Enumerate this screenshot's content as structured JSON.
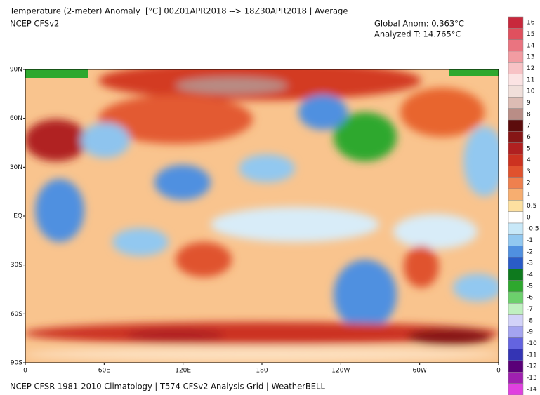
{
  "header": {
    "title": "Temperature (2-meter) Anomaly  [°C] 00Z01APR2018 --> 18Z30APR2018 | Average",
    "subtitle": "NCEP CFSv2",
    "global_anom": "Global Anom: 0.363°C",
    "analyzed_t": "Analyzed T: 14.765°C"
  },
  "map": {
    "lat_labels": [
      "90N",
      "60N",
      "30N",
      "EQ",
      "30S",
      "60S",
      "90S"
    ],
    "lon_labels": [
      "0",
      "60E",
      "120E",
      "180",
      "120W",
      "60W",
      "0"
    ]
  },
  "colorbar": {
    "levels": [
      16,
      15,
      14,
      13,
      12,
      11,
      10,
      9,
      8,
      7,
      6,
      5,
      4,
      3,
      2,
      1,
      0.5,
      0,
      -0.5,
      -1,
      -2,
      -3,
      -4,
      -5,
      -6,
      -7,
      -8,
      -9,
      -10,
      -11,
      -12,
      -13,
      -14
    ],
    "colors": [
      "#c8283c",
      "#e0505e",
      "#ea7480",
      "#f29ca2",
      "#f7c2c5",
      "#fbe3e3",
      "#f0dfda",
      "#dcbcb4",
      "#b98d86",
      "#5c0c0c",
      "#861616",
      "#b02020",
      "#cc3220",
      "#e0522e",
      "#ef804e",
      "#f7ae70",
      "#fde0a0",
      "#ffffff",
      "#c8e8f8",
      "#92c8f0",
      "#5090e0",
      "#2a5cc8",
      "#0e7a1e",
      "#2ea82e",
      "#6cd06c",
      "#c0f0c0",
      "#d2d2f8",
      "#a4a4f0",
      "#6464e0",
      "#3434b4",
      "#5a0078",
      "#a020b0",
      "#e040e0"
    ]
  },
  "footer": "NCEP CFSR 1981-2010 Climatology | T574 CFSv2 Analysis Grid | WeatherBELL"
}
